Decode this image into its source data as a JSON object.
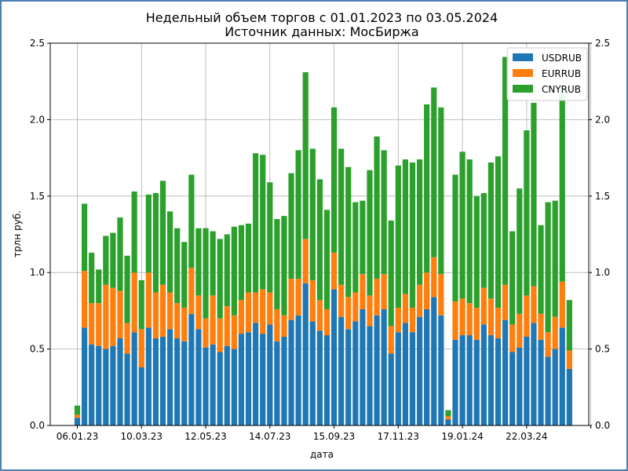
{
  "chart_data": {
    "type": "bar",
    "stacked": true,
    "title": "Недельный объем торгов с 01.01.2023 по 03.05.2024",
    "subtitle": "Источник данных: МосБиржа",
    "xlabel": "дата",
    "ylabel": "трлн руб.",
    "ylim": [
      0,
      2.5
    ],
    "yticks": [
      "0.0",
      "0.5",
      "1.0",
      "1.5",
      "2.0",
      "2.5"
    ],
    "xticks": [
      "06.01.23",
      "10.03.23",
      "12.05.23",
      "14.07.23",
      "15.09.23",
      "17.11.23",
      "19.01.24",
      "22.03.24"
    ],
    "grid": true,
    "legend_position": "top-right",
    "series": [
      {
        "name": "USDRUB",
        "color": "#1f77b4",
        "values": [
          0.05,
          0.64,
          0.53,
          0.52,
          0.5,
          0.52,
          0.57,
          0.47,
          0.61,
          0.38,
          0.64,
          0.57,
          0.58,
          0.63,
          0.57,
          0.55,
          0.73,
          0.63,
          0.51,
          0.53,
          0.48,
          0.52,
          0.5,
          0.6,
          0.61,
          0.67,
          0.6,
          0.66,
          0.55,
          0.58,
          0.69,
          0.72,
          0.93,
          0.68,
          0.62,
          0.59,
          0.89,
          0.71,
          0.63,
          0.68,
          0.76,
          0.65,
          0.72,
          0.76,
          0.47,
          0.61,
          0.67,
          0.61,
          0.71,
          0.76,
          0.84,
          0.72,
          0.04,
          0.56,
          0.59,
          0.59,
          0.56,
          0.66,
          0.59,
          0.57,
          0.69,
          0.48,
          0.51,
          0.58,
          0.67,
          0.56,
          0.45,
          0.5,
          0.64,
          0.37
        ]
      },
      {
        "name": "EURRUB",
        "color": "#ff7f0e",
        "values": [
          0.02,
          0.37,
          0.27,
          0.28,
          0.42,
          0.38,
          0.31,
          0.2,
          0.39,
          0.25,
          0.36,
          0.3,
          0.34,
          0.24,
          0.23,
          0.22,
          0.3,
          0.22,
          0.19,
          0.32,
          0.22,
          0.26,
          0.22,
          0.22,
          0.26,
          0.2,
          0.29,
          0.21,
          0.21,
          0.14,
          0.27,
          0.24,
          0.29,
          0.27,
          0.2,
          0.17,
          0.24,
          0.21,
          0.21,
          0.19,
          0.23,
          0.2,
          0.24,
          0.23,
          0.18,
          0.16,
          0.19,
          0.16,
          0.21,
          0.24,
          0.26,
          0.27,
          0.02,
          0.25,
          0.24,
          0.21,
          0.21,
          0.24,
          0.24,
          0.2,
          0.23,
          0.18,
          0.22,
          0.27,
          0.24,
          0.17,
          0.16,
          0.21,
          0.3,
          0.12
        ]
      },
      {
        "name": "CNYRUB",
        "color": "#2ca02c",
        "values": [
          0.06,
          0.44,
          0.33,
          0.22,
          0.32,
          0.36,
          0.48,
          0.44,
          0.53,
          0.32,
          0.51,
          0.65,
          0.68,
          0.53,
          0.49,
          0.43,
          0.61,
          0.44,
          0.59,
          0.42,
          0.52,
          0.47,
          0.58,
          0.49,
          0.45,
          0.91,
          0.88,
          0.72,
          0.59,
          0.65,
          0.69,
          0.84,
          1.09,
          0.86,
          0.79,
          0.65,
          0.95,
          0.89,
          0.85,
          0.59,
          0.48,
          0.82,
          0.93,
          0.81,
          0.69,
          0.93,
          0.88,
          0.95,
          0.82,
          1.1,
          1.11,
          1.09,
          0.04,
          0.83,
          0.96,
          0.94,
          0.73,
          0.62,
          0.89,
          0.99,
          1.49,
          0.61,
          0.82,
          1.08,
          1.2,
          0.58,
          0.85,
          0.76,
          1.24,
          0.33
        ]
      }
    ]
  },
  "colors": {
    "grid": "#b0b0b0",
    "axis": "#000000"
  }
}
